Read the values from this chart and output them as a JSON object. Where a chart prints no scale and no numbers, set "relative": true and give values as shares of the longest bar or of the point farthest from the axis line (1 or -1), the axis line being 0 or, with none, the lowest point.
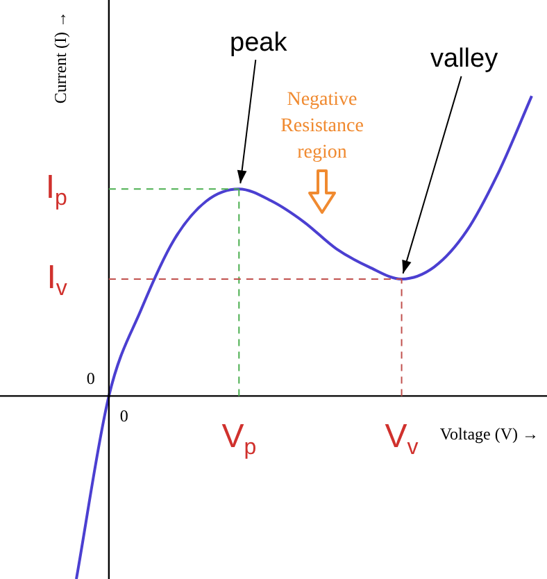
{
  "chart_data": {
    "type": "line",
    "relative": true,
    "xlabel": "Voltage (V) →",
    "ylabel": "Current (I) →",
    "categories": [
      null,
      "0",
      null,
      null,
      null,
      "V$_{p}$",
      null,
      null,
      null,
      null,
      "V$_{v}$",
      null,
      null,
      null,
      null
    ],
    "series": [
      {
        "color": "#4b3fd1",
        "values": [
          -0.61,
          0,
          0.29,
          0.52,
          0.65,
          0.69,
          0.65,
          0.58,
          0.49,
          0.43,
          0.39,
          0.43,
          0.55,
          0.75,
          1
        ]
      }
    ],
    "ref_lines": [
      {
        "axis": "y",
        "value": 0.69,
        "label": "I$_{p}$",
        "color": "#4caf50",
        "line_style": "dashed"
      },
      {
        "axis": "x",
        "value": "V$_{p}$",
        "color": "#4caf50",
        "line_style": "dashed"
      },
      {
        "axis": "y",
        "value": 0.39,
        "label": "I$_{v}$",
        "color": "#c0504d",
        "line_style": "dashed"
      },
      {
        "axis": "x",
        "value": "V$_{v}$",
        "color": "#c0504d",
        "line_style": "dashed"
      }
    ],
    "annotations": [
      {
        "text": "peak",
        "x": "V$_{p}$",
        "y": 0.69
      },
      {
        "text": "valley",
        "x": "V$_{v}$",
        "y": 0.39
      },
      "Negative Resistance region",
      "0"
    ]
  }
}
